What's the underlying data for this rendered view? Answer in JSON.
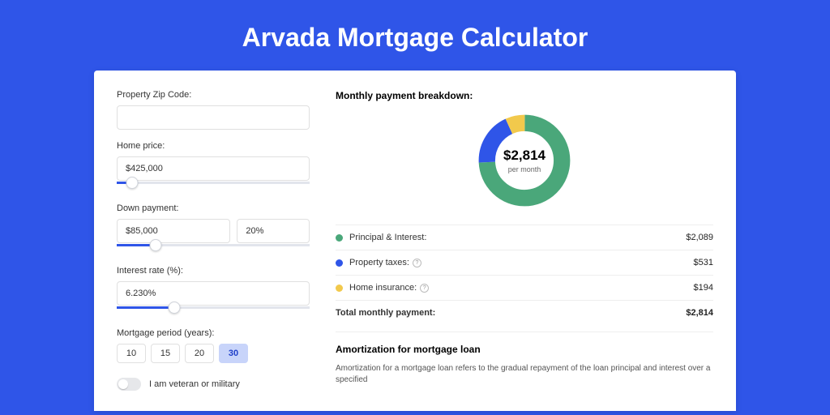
{
  "page_title": "Arvada Mortgage Calculator",
  "colors": {
    "page_bg": "#2f55e8",
    "card_bg": "#ffffff",
    "accent": "#2f55e8",
    "pi": "#4aa77a",
    "tax": "#2f55e8",
    "ins": "#f2c94c"
  },
  "form": {
    "zip": {
      "label": "Property Zip Code:",
      "value": ""
    },
    "home_price": {
      "label": "Home price:",
      "value": "$425,000",
      "slider_pct": 8
    },
    "down_payment": {
      "label": "Down payment:",
      "amount": "$85,000",
      "percent": "20%",
      "slider_pct": 20
    },
    "interest": {
      "label": "Interest rate (%):",
      "value": "6.230%",
      "slider_pct": 30
    },
    "period": {
      "label": "Mortgage period (years):",
      "options": [
        "10",
        "15",
        "20",
        "30"
      ],
      "selected": "30"
    },
    "veteran": {
      "label": "I am veteran or military",
      "value": false
    }
  },
  "breakdown": {
    "title": "Monthly payment breakdown:",
    "donut": {
      "total": "$2,814",
      "sub": "per month",
      "slices": [
        {
          "key": "pi",
          "pct": 74.2,
          "color": "#4aa77a"
        },
        {
          "key": "tax",
          "pct": 18.9,
          "color": "#2f55e8"
        },
        {
          "key": "ins",
          "pct": 6.9,
          "color": "#f2c94c"
        }
      ]
    },
    "rows": [
      {
        "dot": "#4aa77a",
        "label": "Principal & Interest:",
        "info": false,
        "value": "$2,089"
      },
      {
        "dot": "#2f55e8",
        "label": "Property taxes:",
        "info": true,
        "value": "$531"
      },
      {
        "dot": "#f2c94c",
        "label": "Home insurance:",
        "info": true,
        "value": "$194"
      }
    ],
    "total": {
      "label": "Total monthly payment:",
      "value": "$2,814"
    }
  },
  "amort": {
    "title": "Amortization for mortgage loan",
    "text": "Amortization for a mortgage loan refers to the gradual repayment of the loan principal and interest over a specified"
  }
}
